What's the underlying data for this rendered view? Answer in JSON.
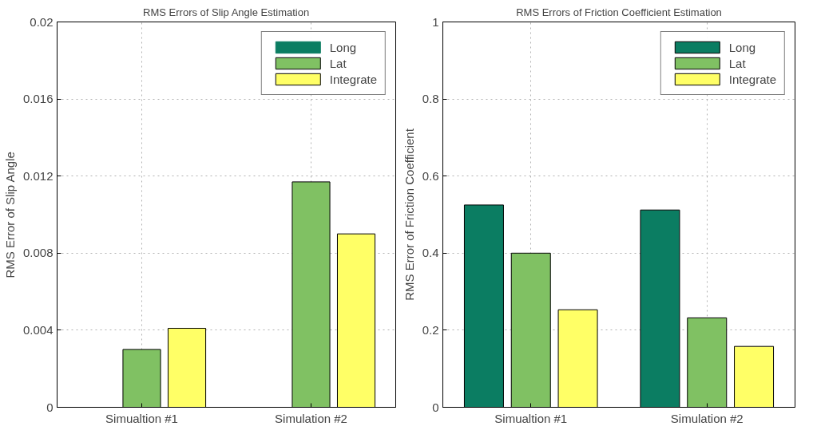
{
  "chart_data": [
    {
      "type": "bar",
      "title": "RMS Errors of Slip Angle Estimation",
      "ylabel": "RMS Error of Slip Angle",
      "categories": [
        "Simualtion #1",
        "Simulation #2"
      ],
      "series": [
        {
          "name": "Long",
          "color": "#0b7d62",
          "values": [
            0,
            0
          ]
        },
        {
          "name": "Lat",
          "color": "#80c163",
          "values": [
            0.003,
            0.0117
          ]
        },
        {
          "name": "Integrate",
          "color": "#ffff66",
          "values": [
            0.0041,
            0.009
          ]
        }
      ],
      "ylim": [
        0,
        0.02
      ],
      "yticks": [
        0,
        0.004,
        0.008,
        0.012,
        0.016,
        0.02
      ],
      "grid": true,
      "legend": "top right"
    },
    {
      "type": "bar",
      "title": "RMS Errors of Friction Coefficient Estimation",
      "ylabel": "RMS Error of Friction Coefficient",
      "categories": [
        "Simualtion #1",
        "Simulation #2"
      ],
      "series": [
        {
          "name": "Long",
          "color": "#0b7d62",
          "values": [
            0.525,
            0.512
          ]
        },
        {
          "name": "Lat",
          "color": "#80c163",
          "values": [
            0.4,
            0.232
          ]
        },
        {
          "name": "Integrate",
          "color": "#ffff66",
          "values": [
            0.253,
            0.158
          ]
        }
      ],
      "ylim": [
        0,
        1
      ],
      "yticks": [
        0,
        0.2,
        0.4,
        0.6,
        0.8,
        1
      ],
      "grid": true,
      "legend": "top right"
    }
  ]
}
